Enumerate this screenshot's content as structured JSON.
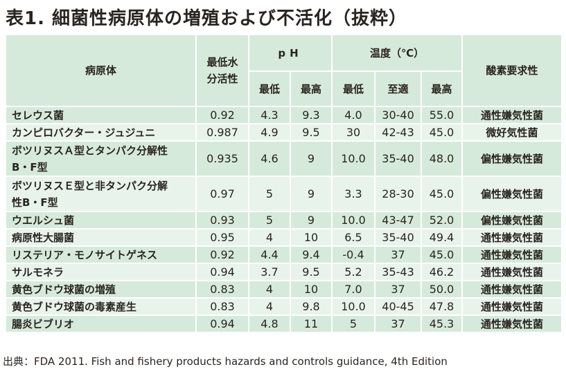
{
  "title": "表1.  細菌性病原体の増殖および不活化（抜粋）",
  "table": {
    "headers": {
      "pathogen": "病原体",
      "aw_line1": "最低水",
      "aw_line2": "分活性",
      "ph": "pH",
      "ph_min": "最低",
      "ph_max": "最高",
      "temp": "温度（℃）",
      "temp_min": "最低",
      "temp_opt": "至適",
      "temp_max": "最高",
      "oxygen": "酸素要求性"
    },
    "rows": [
      {
        "name_line1": "セレウス菌",
        "name_line2": "",
        "aw": "0.92",
        "ph_min": "4.3",
        "ph_max": "9.3",
        "temp_min": "4.0",
        "temp_opt": "30-40",
        "temp_max": "55.0",
        "oxygen": "通性嫌気性菌"
      },
      {
        "name_line1": "カンピロバクター・ジュジュニ",
        "name_line2": "",
        "aw": "0.987",
        "ph_min": "4.9",
        "ph_max": "9.5",
        "temp_min": "30",
        "temp_opt": "42-43",
        "temp_max": "45.0",
        "oxygen": "微好気性菌"
      },
      {
        "name_line1": "ボツリヌスＡ型とタンパク分解性",
        "name_line2": "B・F型",
        "aw": "0.935",
        "ph_min": "4.6",
        "ph_max": "9",
        "temp_min": "10.0",
        "temp_opt": "35-40",
        "temp_max": "48.0",
        "oxygen": "偏性嫌気性菌"
      },
      {
        "name_line1": "ボツリヌスＥ型と非タンパク分解",
        "name_line2": "性B・F型",
        "aw": "0.97",
        "ph_min": "5",
        "ph_max": "9",
        "temp_min": "3.3",
        "temp_opt": "28-30",
        "temp_max": "45.0",
        "oxygen": "偏性嫌気性菌"
      },
      {
        "name_line1": "ウエルシュ菌",
        "name_line2": "",
        "aw": "0.93",
        "ph_min": "5",
        "ph_max": "9",
        "temp_min": "10.0",
        "temp_opt": "43-47",
        "temp_max": "52.0",
        "oxygen": "偏性嫌気性菌"
      },
      {
        "name_line1": "病原性大腸菌",
        "name_line2": "",
        "aw": "0.95",
        "ph_min": "4",
        "ph_max": "10",
        "temp_min": "6.5",
        "temp_opt": "35-40",
        "temp_max": "49.4",
        "oxygen": "通性嫌気性菌"
      },
      {
        "name_line1": "リステリア・モノサイトゲネス",
        "name_line2": "",
        "aw": "0.92",
        "ph_min": "4.4",
        "ph_max": "9.4",
        "temp_min": "-0.4",
        "temp_opt": "37",
        "temp_max": "45.0",
        "oxygen": "通性嫌気性菌"
      },
      {
        "name_line1": "サルモネラ",
        "name_line2": "",
        "aw": "0.94",
        "ph_min": "3.7",
        "ph_max": "9.5",
        "temp_min": "5.2",
        "temp_opt": "35-43",
        "temp_max": "46.2",
        "oxygen": "通性嫌気性菌"
      },
      {
        "name_line1": "黄色ブドウ球菌の増殖",
        "name_line2": "",
        "aw": "0.83",
        "ph_min": "4",
        "ph_max": "10",
        "temp_min": "7.0",
        "temp_opt": "37",
        "temp_max": "50.0",
        "oxygen": "通性嫌気性菌"
      },
      {
        "name_line1": "黄色ブドウ球菌の毒素産生",
        "name_line2": "",
        "aw": "0.83",
        "ph_min": "4",
        "ph_max": "9.8",
        "temp_min": "10.0",
        "temp_opt": "40-45",
        "temp_max": "47.8",
        "oxygen": "通性嫌気性菌"
      },
      {
        "name_line1": "腸炎ビブリオ",
        "name_line2": "",
        "aw": "0.94",
        "ph_min": "4.8",
        "ph_max": "11",
        "temp_min": "5",
        "temp_opt": "37",
        "temp_max": "45.3",
        "oxygen": "通性嫌気性菌"
      }
    ]
  },
  "source": "出典：FDA 2011. Fish and fishery products hazards and controls guidance, 4th Edition",
  "colors": {
    "header_bg": "#d6eadb",
    "row_dark": "#d6eadb",
    "row_light": "#e8f4eb",
    "text": "#2a2420"
  }
}
